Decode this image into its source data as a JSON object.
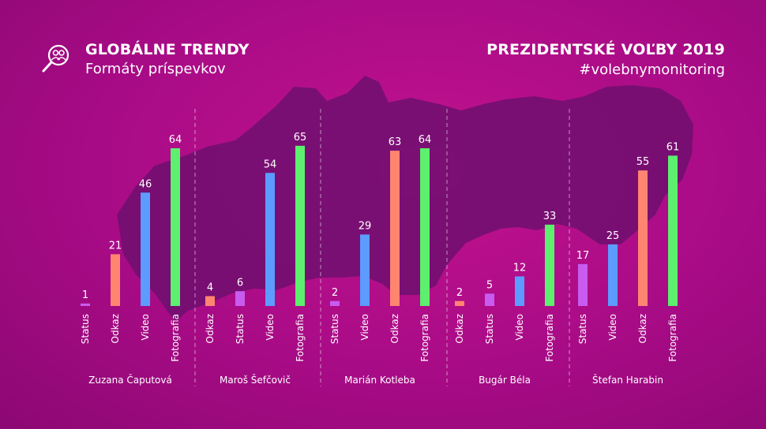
{
  "header": {
    "title_left": "GLOBÁLNE TRENDY",
    "subtitle_left": "Formáty príspevkov",
    "title_right": "PREZIDENTSKÉ VOĽBY 2019",
    "subtitle_right": "#volebnymonitoring",
    "logo_icon": "magnifier-people-icon"
  },
  "colors": {
    "background": "#a80b86",
    "map": "#6e0f6e",
    "Status": "#c85cf0",
    "Odkaz": "#ff8570",
    "Video": "#5c9bff",
    "Fotografia": "#5cf06e"
  },
  "chart_data": {
    "type": "bar",
    "ylim": [
      0,
      70
    ],
    "groups": [
      {
        "name": "Zuzana Čaputová",
        "bars": [
          {
            "category": "Status",
            "value": 1
          },
          {
            "category": "Odkaz",
            "value": 21
          },
          {
            "category": "Video",
            "value": 46
          },
          {
            "category": "Fotografia",
            "value": 64
          }
        ]
      },
      {
        "name": "Maroš Šefčovič",
        "bars": [
          {
            "category": "Odkaz",
            "value": 4
          },
          {
            "category": "Status",
            "value": 6
          },
          {
            "category": "Video",
            "value": 54
          },
          {
            "category": "Fotografia",
            "value": 65
          }
        ]
      },
      {
        "name": "Marián Kotleba",
        "bars": [
          {
            "category": "Status",
            "value": 2
          },
          {
            "category": "Video",
            "value": 29
          },
          {
            "category": "Odkaz",
            "value": 63
          },
          {
            "category": "Fotografia",
            "value": 64
          }
        ]
      },
      {
        "name": "Bugár Béla",
        "bars": [
          {
            "category": "Odkaz",
            "value": 2
          },
          {
            "category": "Status",
            "value": 5
          },
          {
            "category": "Video",
            "value": 12
          },
          {
            "category": "Fotografia",
            "value": 33
          }
        ]
      },
      {
        "name": "Štefan Harabin",
        "bars": [
          {
            "category": "Status",
            "value": 17
          },
          {
            "category": "Video",
            "value": 25
          },
          {
            "category": "Odkaz",
            "value": 55
          },
          {
            "category": "Fotografia",
            "value": 61
          }
        ]
      }
    ]
  }
}
